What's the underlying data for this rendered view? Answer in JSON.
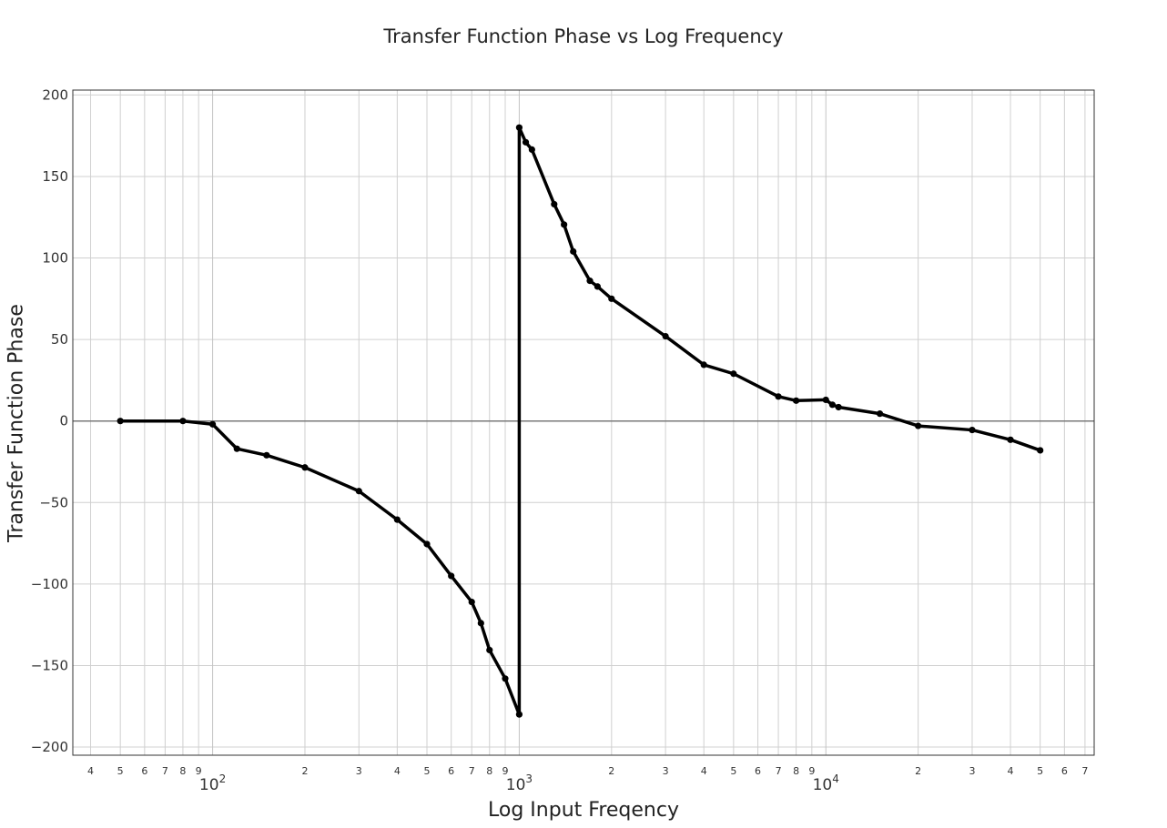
{
  "chart_data": {
    "type": "line",
    "title": "Transfer Function Phase vs Log Frequency",
    "xlabel": "Log Input Freqency",
    "ylabel": "Transfer Function Phase",
    "x_scale": "log",
    "xlim": [
      35,
      75000
    ],
    "ylim": [
      -205,
      203
    ],
    "yticks": [
      200,
      150,
      100,
      50,
      0,
      -50,
      -100,
      -150,
      -200
    ],
    "ytick_labels": [
      "200",
      "150",
      "100",
      "50",
      "0",
      "−50",
      "−100",
      "−150",
      "−200"
    ],
    "xtick_major": [
      {
        "value": 100,
        "base": "10",
        "exp": "2"
      },
      {
        "value": 1000,
        "base": "10",
        "exp": "3"
      },
      {
        "value": 10000,
        "base": "10",
        "exp": "4"
      }
    ],
    "xtick_minor": [
      {
        "value": 40,
        "label": "4"
      },
      {
        "value": 50,
        "label": "5"
      },
      {
        "value": 60,
        "label": "6"
      },
      {
        "value": 70,
        "label": "7"
      },
      {
        "value": 80,
        "label": "8"
      },
      {
        "value": 90,
        "label": "9"
      },
      {
        "value": 200,
        "label": "2"
      },
      {
        "value": 300,
        "label": "3"
      },
      {
        "value": 400,
        "label": "4"
      },
      {
        "value": 500,
        "label": "5"
      },
      {
        "value": 600,
        "label": "6"
      },
      {
        "value": 700,
        "label": "7"
      },
      {
        "value": 800,
        "label": "8"
      },
      {
        "value": 900,
        "label": "9"
      },
      {
        "value": 2000,
        "label": "2"
      },
      {
        "value": 3000,
        "label": "3"
      },
      {
        "value": 4000,
        "label": "4"
      },
      {
        "value": 5000,
        "label": "5"
      },
      {
        "value": 6000,
        "label": "6"
      },
      {
        "value": 7000,
        "label": "7"
      },
      {
        "value": 8000,
        "label": "8"
      },
      {
        "value": 9000,
        "label": "9"
      },
      {
        "value": 20000,
        "label": "2"
      },
      {
        "value": 30000,
        "label": "3"
      },
      {
        "value": 40000,
        "label": "4"
      },
      {
        "value": 50000,
        "label": "5"
      },
      {
        "value": 60000,
        "label": "6"
      },
      {
        "value": 70000,
        "label": "7"
      }
    ],
    "grid": true,
    "series": [
      {
        "color": "#000000",
        "x": [
          50,
          80,
          100,
          120,
          150,
          200,
          300,
          400,
          500,
          600,
          700,
          750,
          800,
          900,
          1000,
          1000,
          1050,
          1100,
          1300,
          1400,
          1500,
          1700,
          1800,
          2000,
          3000,
          4000,
          5000,
          7000,
          8000,
          10000,
          10500,
          11000,
          15000,
          20000,
          30000,
          40000,
          50000
        ],
        "y": [
          0,
          0,
          -2,
          -17,
          -21,
          -28.5,
          -43,
          -60.5,
          -75.5,
          -95,
          -111,
          -124,
          -140.5,
          -158,
          -180,
          180,
          171,
          166.5,
          133,
          120.5,
          104,
          86,
          82.5,
          75,
          52,
          34.5,
          29,
          15,
          12.5,
          13,
          10,
          8.5,
          4.5,
          -3,
          -5.5,
          -11.5,
          -18
        ]
      }
    ]
  }
}
